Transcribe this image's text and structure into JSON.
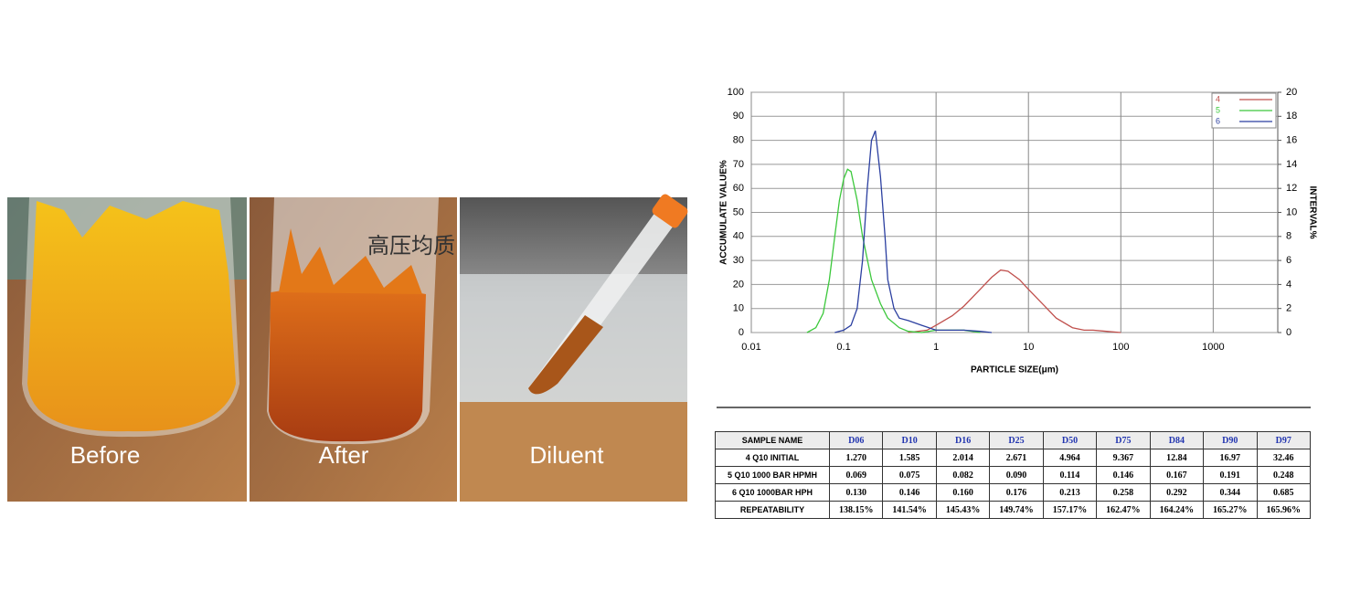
{
  "photos": [
    {
      "caption": "Before"
    },
    {
      "caption": "After",
      "annotation": "高压均质"
    },
    {
      "caption": "Diluent"
    }
  ],
  "chart_data": {
    "type": "line",
    "xlabel": "PARTICLE SIZE(μm)",
    "ylabel": "ACCUMULATE VALUE%",
    "y2label": "INTERVAL%",
    "xscale": "log",
    "xlim": [
      0.01,
      5000
    ],
    "xticks": [
      0.01,
      0.1,
      1,
      10,
      100,
      1000
    ],
    "ylim": [
      0,
      100
    ],
    "yticks": [
      0,
      10,
      20,
      30,
      40,
      50,
      60,
      70,
      80,
      90,
      100
    ],
    "y2lim": [
      0,
      20
    ],
    "y2ticks": [
      0,
      2,
      4,
      6,
      8,
      10,
      12,
      14,
      16,
      18,
      20
    ],
    "grid": true,
    "legend": "upper right",
    "series": [
      {
        "name": "4",
        "color": "#c0504d",
        "axis": "y2",
        "x": [
          0.5,
          0.8,
          1,
          1.5,
          2,
          3,
          4,
          5,
          6,
          8,
          10,
          15,
          20,
          30,
          40,
          50,
          70,
          100
        ],
        "values": [
          0,
          0.2,
          0.6,
          1.4,
          2.2,
          3.6,
          4.6,
          5.2,
          5.1,
          4.4,
          3.6,
          2.2,
          1.2,
          0.4,
          0.2,
          0.2,
          0.1,
          0
        ]
      },
      {
        "name": "5",
        "color": "#3cc83c",
        "axis": "y2",
        "x": [
          0.04,
          0.05,
          0.06,
          0.07,
          0.08,
          0.09,
          0.1,
          0.11,
          0.12,
          0.14,
          0.16,
          0.2,
          0.25,
          0.3,
          0.4,
          0.5,
          0.7,
          1,
          2,
          3
        ],
        "values": [
          0,
          0.4,
          1.6,
          4.4,
          8,
          11,
          12.8,
          13.6,
          13.4,
          11,
          8,
          4.4,
          2.4,
          1.2,
          0.4,
          0.1,
          0,
          0.2,
          0.2,
          0
        ]
      },
      {
        "name": "6",
        "color": "#2b3fa0",
        "axis": "y2",
        "x": [
          0.08,
          0.1,
          0.12,
          0.14,
          0.16,
          0.18,
          0.2,
          0.22,
          0.25,
          0.28,
          0.3,
          0.35,
          0.4,
          0.5,
          0.7,
          1,
          2,
          3,
          4
        ],
        "values": [
          0,
          0.2,
          0.6,
          2,
          6,
          12,
          16,
          16.8,
          13,
          8,
          4.4,
          2,
          1.2,
          1,
          0.6,
          0.2,
          0.2,
          0.1,
          0
        ]
      }
    ]
  },
  "table": {
    "header": [
      "SAMPLE NAME",
      "D06",
      "D10",
      "D16",
      "D25",
      "D50",
      "D75",
      "D84",
      "D90",
      "D97"
    ],
    "rows": [
      [
        "4 Q10 INITIAL",
        "1.270",
        "1.585",
        "2.014",
        "2.671",
        "4.964",
        "9.367",
        "12.84",
        "16.97",
        "32.46"
      ],
      [
        "5 Q10 1000 BAR HPMH",
        "0.069",
        "0.075",
        "0.082",
        "0.090",
        "0.114",
        "0.146",
        "0.167",
        "0.191",
        "0.248"
      ],
      [
        "6 Q10 1000BAR HPH",
        "0.130",
        "0.146",
        "0.160",
        "0.176",
        "0.213",
        "0.258",
        "0.292",
        "0.344",
        "0.685"
      ],
      [
        "REPEATABILITY",
        "138.15%",
        "141.54%",
        "145.43%",
        "149.74%",
        "157.17%",
        "162.47%",
        "164.24%",
        "165.27%",
        "165.96%"
      ]
    ]
  }
}
